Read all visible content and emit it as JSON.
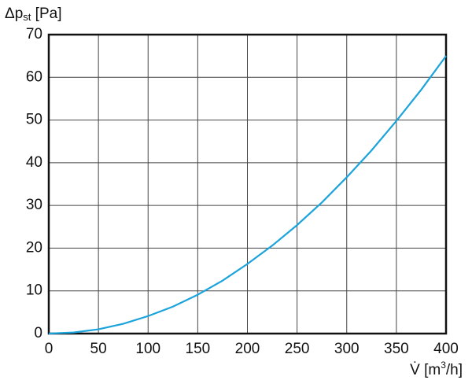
{
  "chart_data": {
    "type": "line",
    "ylabel": [
      "Δp",
      "st",
      " [Pa]"
    ],
    "xlabel": [
      "V̇ [m",
      "3",
      "/h]"
    ],
    "x": [
      0,
      25,
      50,
      75,
      100,
      125,
      150,
      175,
      200,
      225,
      250,
      275,
      300,
      325,
      350,
      375,
      400
    ],
    "series": [
      {
        "color": "#1ba3dc",
        "values": [
          0,
          0.25,
          1.0,
          2.3,
          4.1,
          6.3,
          9.1,
          12.4,
          16.3,
          20.6,
          25.4,
          30.7,
          36.6,
          42.9,
          49.8,
          57.1,
          65
        ]
      }
    ],
    "xlim": [
      0,
      400
    ],
    "xticks": [
      0,
      50,
      100,
      150,
      200,
      250,
      300,
      350,
      400
    ],
    "ylim": [
      0,
      70
    ],
    "yticks": [
      0,
      10,
      20,
      30,
      40,
      50,
      60,
      70
    ],
    "grid": true
  }
}
